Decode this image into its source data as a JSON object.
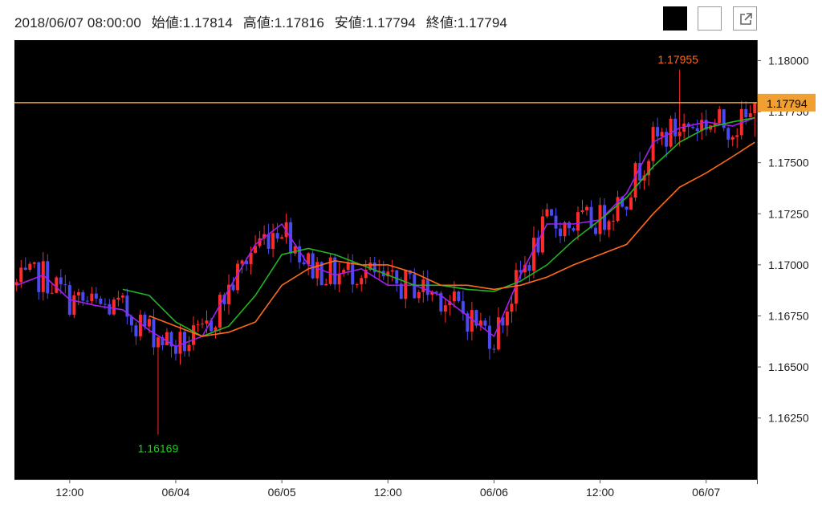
{
  "header": {
    "datetime": "2018/06/07 08:00:00",
    "open": "始値:1.17814",
    "high": "高値:1.17816",
    "low": "安値:1.17794",
    "close": "終値:1.17794"
  },
  "buttons": {
    "dark": "dark-theme",
    "light": "light-theme",
    "popout": "external-link-icon"
  },
  "colors": {
    "background": "#000000",
    "up": "#ff2a2a",
    "down": "#4a4af0",
    "ma_short": "#a020f0",
    "ma_mid": "#22b522",
    "ma_long": "#ff6a1a",
    "current": "#f0a030",
    "high_label": "#ff6a1a",
    "low_label": "#22cc22"
  },
  "chart_data": {
    "type": "candlestick",
    "title": "",
    "ylim": [
      1.1595,
      1.181
    ],
    "y_ticks": [
      1.1625,
      1.165,
      1.1675,
      1.17,
      1.1725,
      1.175,
      1.1775,
      1.18
    ],
    "y_tick_labels": [
      "1.16250",
      "1.16500",
      "1.16750",
      "1.17000",
      "1.17250",
      "1.17500",
      "1.17750",
      "1.18000"
    ],
    "x_ticks": [
      {
        "index": 12,
        "label": "12:00"
      },
      {
        "index": 36,
        "label": "06/04"
      },
      {
        "index": 60,
        "label": "06/05"
      },
      {
        "index": 84,
        "label": "12:00"
      },
      {
        "index": 108,
        "label": "06/06"
      },
      {
        "index": 132,
        "label": "12:00"
      },
      {
        "index": 156,
        "label": "06/07"
      }
    ],
    "candle_count": 168,
    "current_price": 1.17794,
    "current_price_label": "1.17794",
    "high_annotation": {
      "index": 150,
      "value": 1.17955,
      "label": "1.17955"
    },
    "low_annotation": {
      "index": 32,
      "value": 1.16169,
      "label": "1.16169"
    },
    "series": [
      {
        "name": "",
        "color": "#a020f0",
        "x": [
          0,
          6,
          12,
          18,
          24,
          30,
          36,
          42,
          48,
          54,
          60,
          66,
          72,
          78,
          84,
          90,
          96,
          102,
          108,
          114,
          120,
          126,
          132,
          138,
          144,
          150,
          156,
          162,
          167
        ],
        "values": [
          1.169,
          1.1695,
          1.1683,
          1.168,
          1.1678,
          1.1668,
          1.166,
          1.1665,
          1.1688,
          1.171,
          1.172,
          1.17,
          1.1695,
          1.1698,
          1.169,
          1.169,
          1.1685,
          1.1675,
          1.1665,
          1.1695,
          1.172,
          1.172,
          1.1722,
          1.1735,
          1.176,
          1.1767,
          1.177,
          1.1768,
          1.1772
        ]
      },
      {
        "name": "",
        "color": "#22b522",
        "x": [
          24,
          30,
          36,
          42,
          48,
          54,
          60,
          66,
          72,
          78,
          84,
          90,
          96,
          102,
          108,
          114,
          120,
          126,
          132,
          138,
          144,
          150,
          156,
          162,
          167
        ],
        "values": [
          1.1688,
          1.1685,
          1.1672,
          1.1665,
          1.167,
          1.1685,
          1.1705,
          1.1708,
          1.1705,
          1.17,
          1.1695,
          1.169,
          1.169,
          1.1688,
          1.1687,
          1.1692,
          1.17,
          1.1712,
          1.1722,
          1.1733,
          1.1748,
          1.176,
          1.1767,
          1.177,
          1.1772
        ]
      },
      {
        "name": "",
        "color": "#ff6a1a",
        "x": [
          30,
          36,
          42,
          48,
          54,
          60,
          66,
          72,
          78,
          84,
          90,
          96,
          102,
          108,
          114,
          120,
          126,
          132,
          138,
          144,
          150,
          156,
          162,
          167
        ],
        "values": [
          1.1675,
          1.167,
          1.1665,
          1.1667,
          1.1672,
          1.169,
          1.1698,
          1.1702,
          1.17,
          1.17,
          1.1696,
          1.169,
          1.169,
          1.1688,
          1.169,
          1.1694,
          1.17,
          1.1705,
          1.171,
          1.1725,
          1.1738,
          1.1745,
          1.1753,
          1.176
        ]
      }
    ]
  }
}
